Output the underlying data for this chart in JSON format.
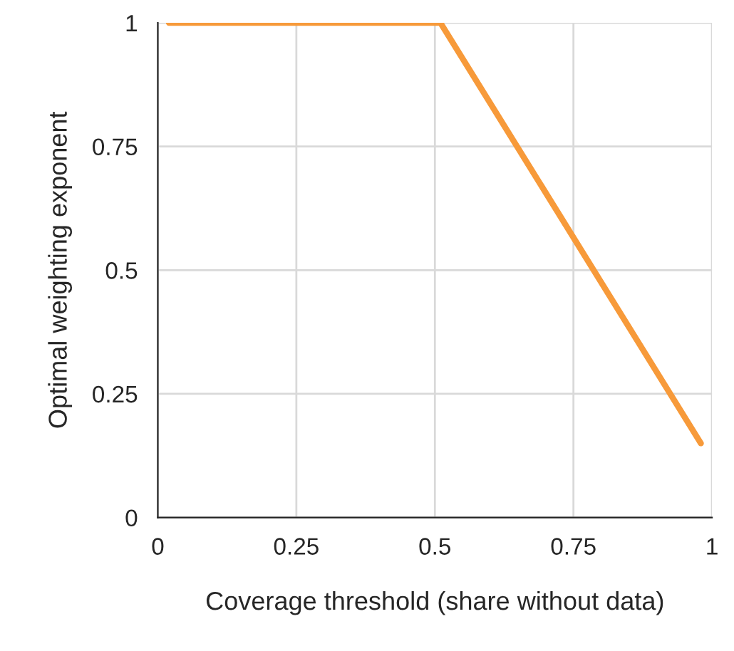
{
  "chart_data": {
    "type": "line",
    "xlabel": "Coverage threshold (share without data)",
    "ylabel": "Optimal weighting exponent",
    "series": [
      {
        "color": "#f79a3a",
        "x": [
          0.02,
          0.51,
          0.98
        ],
        "values": [
          1,
          1,
          0.15
        ]
      }
    ],
    "xlim": [
      0,
      1
    ],
    "xticks": [
      0,
      0.25,
      0.5,
      0.75,
      1
    ],
    "ylim": [
      0,
      1
    ],
    "yticks": [
      0,
      0.25,
      0.5,
      0.75,
      1
    ],
    "grid": true,
    "marker": "none",
    "line_style": "solid",
    "legend": false
  }
}
